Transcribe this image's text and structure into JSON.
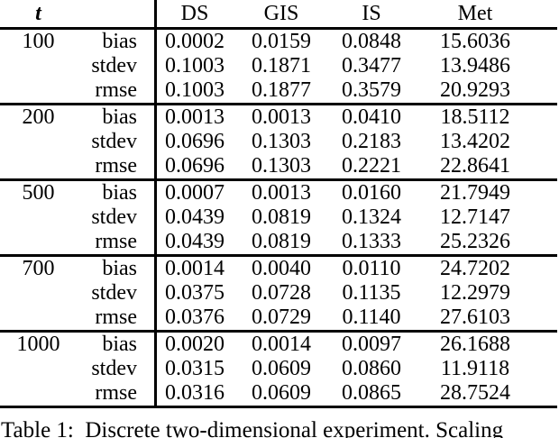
{
  "colors": {
    "text": "#000000",
    "background": "#ffffff",
    "rule": "#000000"
  },
  "table": {
    "t_header": "t",
    "columns": [
      "DS",
      "GIS",
      "IS",
      "Met"
    ],
    "row_labels": [
      "bias",
      "stdev",
      "rmse"
    ],
    "groups": [
      {
        "t": "100",
        "rows": [
          {
            "label": "bias",
            "values": [
              "0.0002",
              "0.0159",
              "0.0848",
              "15.6036"
            ]
          },
          {
            "label": "stdev",
            "values": [
              "0.1003",
              "0.1871",
              "0.3477",
              "13.9486"
            ]
          },
          {
            "label": "rmse",
            "values": [
              "0.1003",
              "0.1877",
              "0.3579",
              "20.9293"
            ]
          }
        ]
      },
      {
        "t": "200",
        "rows": [
          {
            "label": "bias",
            "values": [
              "0.0013",
              "0.0013",
              "0.0410",
              "18.5112"
            ]
          },
          {
            "label": "stdev",
            "values": [
              "0.0696",
              "0.1303",
              "0.2183",
              "13.4202"
            ]
          },
          {
            "label": "rmse",
            "values": [
              "0.0696",
              "0.1303",
              "0.2221",
              "22.8641"
            ]
          }
        ]
      },
      {
        "t": "500",
        "rows": [
          {
            "label": "bias",
            "values": [
              "0.0007",
              "0.0013",
              "0.0160",
              "21.7949"
            ]
          },
          {
            "label": "stdev",
            "values": [
              "0.0439",
              "0.0819",
              "0.1324",
              "12.7147"
            ]
          },
          {
            "label": "rmse",
            "values": [
              "0.0439",
              "0.0819",
              "0.1333",
              "25.2326"
            ]
          }
        ]
      },
      {
        "t": "700",
        "rows": [
          {
            "label": "bias",
            "values": [
              "0.0014",
              "0.0040",
              "0.0110",
              "24.7202"
            ]
          },
          {
            "label": "stdev",
            "values": [
              "0.0375",
              "0.0728",
              "0.1135",
              "12.2979"
            ]
          },
          {
            "label": "rmse",
            "values": [
              "0.0376",
              "0.0729",
              "0.1140",
              "27.6103"
            ]
          }
        ]
      },
      {
        "t": "1000",
        "rows": [
          {
            "label": "bias",
            "values": [
              "0.0020",
              "0.0014",
              "0.0097",
              "26.1688"
            ]
          },
          {
            "label": "stdev",
            "values": [
              "0.0315",
              "0.0609",
              "0.0860",
              "11.9118"
            ]
          },
          {
            "label": "rmse",
            "values": [
              "0.0316",
              "0.0609",
              "0.0865",
              "28.7524"
            ]
          }
        ]
      }
    ]
  },
  "caption": {
    "visible_fragment": "Table 1:  Discrete two-dimensional experiment. Scaling"
  }
}
